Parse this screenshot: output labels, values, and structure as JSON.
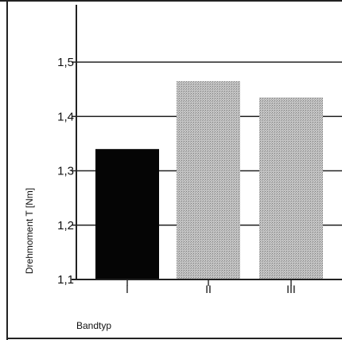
{
  "chart_data": {
    "type": "bar",
    "categories": [
      "I",
      "II",
      "III"
    ],
    "values": [
      1.34,
      1.465,
      1.435
    ],
    "xlabel": "Bandtyp",
    "ylabel": "Drehmoment T [Nm]",
    "ylim": [
      1.1,
      1.5
    ],
    "yticks": [
      "1,1",
      "1,2",
      "1,3",
      "1,4",
      "1,5"
    ],
    "grid": true,
    "colors": [
      "#050505",
      "#b9b9b9",
      "#b9b9b9"
    ]
  }
}
